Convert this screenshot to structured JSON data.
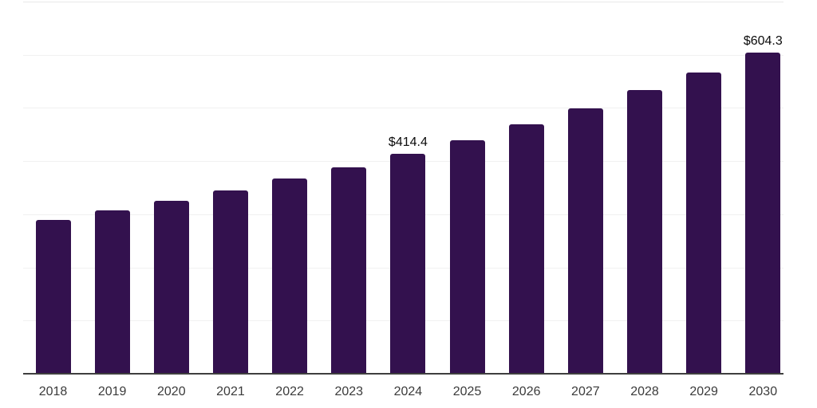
{
  "chart_data": {
    "type": "bar",
    "title": "",
    "xlabel": "",
    "ylabel": "",
    "categories": [
      "2018",
      "2019",
      "2020",
      "2021",
      "2022",
      "2023",
      "2024",
      "2025",
      "2026",
      "2027",
      "2028",
      "2029",
      "2030"
    ],
    "values": [
      288.7,
      306.6,
      324.6,
      344.1,
      366.5,
      388.9,
      414.4,
      439.8,
      469.0,
      499.7,
      534.0,
      567.0,
      604.3
    ],
    "value_labels": {
      "2024": "$414.4",
      "2030": "$604.3"
    },
    "ylim": [
      0,
      700
    ],
    "gridline_step": 100,
    "grid": true,
    "legend_position": "none",
    "y_tick_labels_shown": false,
    "colors": {
      "bar": "#33114e",
      "axis": "#3f3f3f",
      "gridline": "#f1f1f1",
      "value_label": "#0b0b0b",
      "tick_label": "#3b3b3b",
      "background": "#ffffff"
    }
  }
}
